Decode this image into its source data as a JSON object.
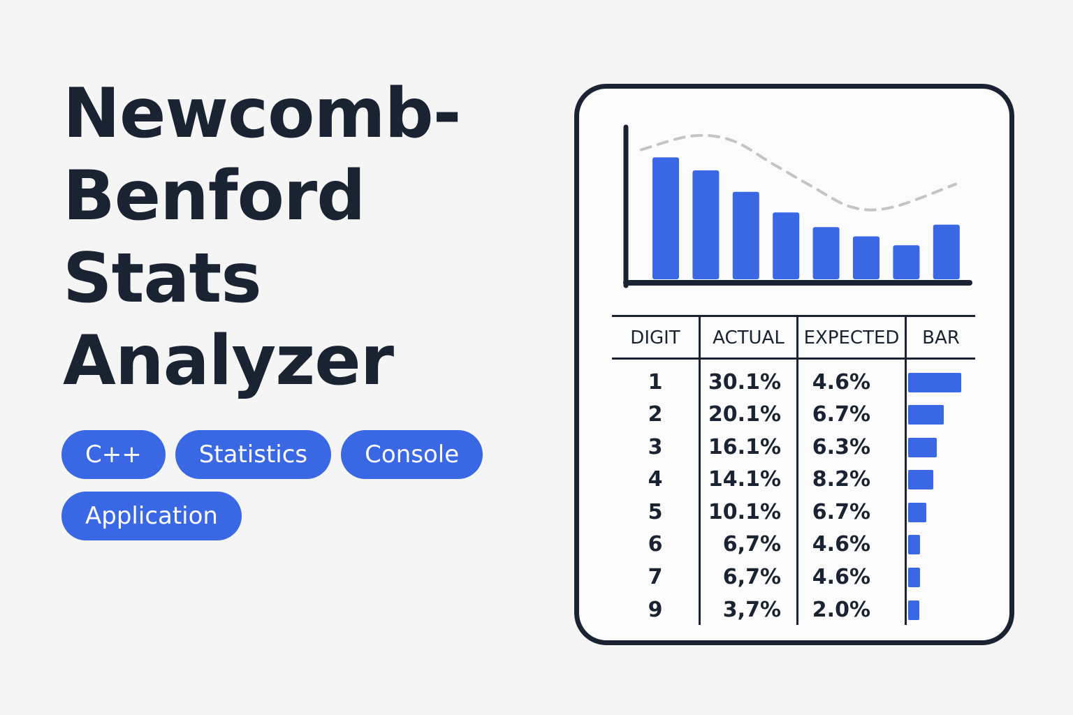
{
  "title_lines": [
    "Newcomb-",
    "Benford",
    "Stats",
    "Analyzer"
  ],
  "tags": [
    "C++",
    "Statistics",
    "Console",
    "Application"
  ],
  "colors": {
    "accent": "#3a68e4",
    "text": "#1a2332",
    "background": "#f5f5f5",
    "curve": "#c4c4c4"
  },
  "chart_data": {
    "type": "bar",
    "values": [
      30.1,
      26.9,
      21.6,
      16.5,
      12.9,
      10.6,
      8.4,
      13.5
    ],
    "overlay": {
      "type": "line",
      "style": "dashed",
      "values": [
        32.0,
        35.4,
        34.3,
        28.6,
        22.9,
        17.8,
        17.8,
        23.5
      ]
    },
    "grid": false,
    "legend": "none"
  },
  "table": {
    "headers": [
      "DIGIT",
      "ACTUAL",
      "EXPECTED",
      "BAR"
    ],
    "rows": [
      {
        "digit": "1",
        "actual": "30.1%",
        "expected": "4.6%",
        "bar": 30.1
      },
      {
        "digit": "2",
        "actual": "20.1%",
        "expected": "6.7%",
        "bar": 20.1
      },
      {
        "digit": "3",
        "actual": "16.1%",
        "expected": "6.3%",
        "bar": 16.1
      },
      {
        "digit": "4",
        "actual": "14.1%",
        "expected": "8.2%",
        "bar": 14.1
      },
      {
        "digit": "5",
        "actual": "10.1%",
        "expected": "6.7%",
        "bar": 10.1
      },
      {
        "digit": "6",
        "actual": "6,7%",
        "expected": "4.6%",
        "bar": 6.7
      },
      {
        "digit": "7",
        "actual": "6,7%",
        "expected": "4.6%",
        "bar": 6.7
      },
      {
        "digit": "9",
        "actual": "3,7%",
        "expected": "2.0%",
        "bar": 3.7
      }
    ]
  }
}
